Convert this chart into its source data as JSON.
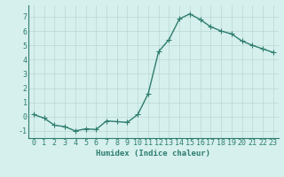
{
  "title": "",
  "xlabel": "Humidex (Indice chaleur)",
  "x": [
    0,
    1,
    2,
    3,
    4,
    5,
    6,
    7,
    8,
    9,
    10,
    11,
    12,
    13,
    14,
    15,
    16,
    17,
    18,
    19,
    20,
    21,
    22,
    23
  ],
  "y": [
    0.15,
    -0.1,
    -0.6,
    -0.7,
    -1.0,
    -0.85,
    -0.9,
    -0.3,
    -0.35,
    -0.4,
    0.15,
    1.6,
    4.55,
    5.4,
    6.85,
    7.2,
    6.8,
    6.3,
    6.0,
    5.8,
    5.3,
    5.0,
    4.75,
    4.5
  ],
  "line_color": "#2e7d6e",
  "marker": "D",
  "marker_size": 2.0,
  "bg_color": "#d6f0ee",
  "grid_color": "#b8d8d4",
  "tick_color": "#2e7d6e",
  "ylim": [
    -1.5,
    7.8
  ],
  "xlim": [
    -0.5,
    23.5
  ],
  "yticks": [
    -1,
    0,
    1,
    2,
    3,
    4,
    5,
    6,
    7
  ],
  "xticks": [
    0,
    1,
    2,
    3,
    4,
    5,
    6,
    7,
    8,
    9,
    10,
    11,
    12,
    13,
    14,
    15,
    16,
    17,
    18,
    19,
    20,
    21,
    22,
    23
  ],
  "xlabel_fontsize": 6.5,
  "tick_fontsize": 6.0,
  "line_width": 1.0
}
